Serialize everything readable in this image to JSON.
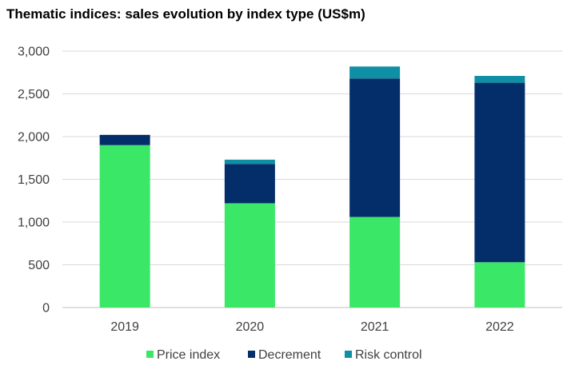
{
  "chart_data": {
    "type": "bar",
    "stacked": true,
    "title": "Thematic indices: sales evolution by index type (US$m)",
    "xlabel": "",
    "ylabel": "",
    "categories": [
      "2019",
      "2020",
      "2021",
      "2022"
    ],
    "series": [
      {
        "name": "Price index",
        "color": "#3be766",
        "values": [
          1900,
          1220,
          1060,
          530
        ]
      },
      {
        "name": "Decrement",
        "color": "#042e6a",
        "values": [
          120,
          460,
          1620,
          2100
        ]
      },
      {
        "name": "Risk control",
        "color": "#0e8fa3",
        "values": [
          0,
          50,
          140,
          80
        ]
      }
    ],
    "ylim": [
      0,
      3000
    ],
    "yticks": [
      0,
      500,
      1000,
      1500,
      2000,
      2500,
      3000
    ],
    "ytick_labels": [
      "0",
      "500",
      "1,000",
      "1,500",
      "2,000",
      "2,500",
      "3,000"
    ],
    "grid": true,
    "legend_position": "bottom"
  }
}
